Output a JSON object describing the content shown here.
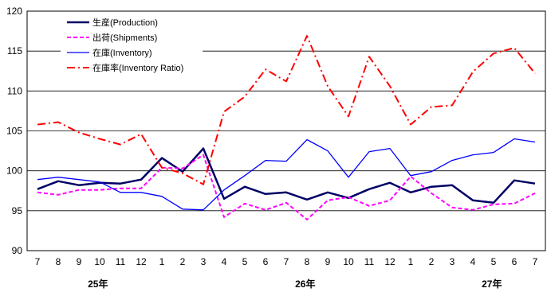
{
  "chart_data": {
    "type": "line",
    "title": "",
    "xlabel": "",
    "ylabel": "",
    "ylim": [
      90,
      120
    ],
    "yticks": [
      90,
      95,
      100,
      105,
      110,
      115,
      120
    ],
    "grid": "horizontal",
    "legend_position": "top-left",
    "categories": [
      "7",
      "8",
      "9",
      "10",
      "11",
      "12",
      "1",
      "2",
      "3",
      "4",
      "5",
      "6",
      "7",
      "8",
      "9",
      "10",
      "11",
      "12",
      "1",
      "2",
      "3",
      "4",
      "5",
      "6",
      "7"
    ],
    "year_labels": [
      {
        "label": "25年",
        "index": 3
      },
      {
        "label": "26年",
        "index": 13
      },
      {
        "label": "27年",
        "index": 22
      }
    ],
    "series": [
      {
        "name": "生産(Production)",
        "color": "#000066",
        "dash": "solid",
        "width": 2.5,
        "values": [
          97.7,
          98.7,
          98.2,
          98.5,
          98.4,
          98.9,
          101.6,
          99.9,
          102.8,
          96.5,
          98.0,
          97.1,
          97.3,
          96.4,
          97.3,
          96.6,
          97.7,
          98.5,
          97.3,
          98.0,
          98.2,
          96.3,
          96.0,
          98.8,
          98.4
        ]
      },
      {
        "name": "出荷(Shipments)",
        "color": "#ff00ff",
        "dash": "short-dash",
        "width": 2,
        "values": [
          97.3,
          97.0,
          97.6,
          97.6,
          97.8,
          97.8,
          100.4,
          100.3,
          102.0,
          94.2,
          95.9,
          95.1,
          96.0,
          93.9,
          96.3,
          96.7,
          95.6,
          96.3,
          99.3,
          97.2,
          95.4,
          95.1,
          95.8,
          95.9,
          97.2
        ]
      },
      {
        "name": "在庫(Inventory)",
        "color": "#0000ff",
        "dash": "solid",
        "width": 1.3,
        "values": [
          98.9,
          99.2,
          98.9,
          98.6,
          97.3,
          97.3,
          96.8,
          95.2,
          95.1,
          97.6,
          99.4,
          101.3,
          101.2,
          103.9,
          102.5,
          99.2,
          102.4,
          102.8,
          99.4,
          99.9,
          101.3,
          102.0,
          102.3,
          104.0,
          103.6
        ]
      },
      {
        "name": "在庫率(Inventory Ratio)",
        "color": "#ff0000",
        "dash": "dash-dot",
        "width": 2,
        "values": [
          105.8,
          106.1,
          104.8,
          104.0,
          103.3,
          104.6,
          100.4,
          99.7,
          98.3,
          107.4,
          109.3,
          112.7,
          111.2,
          116.9,
          110.6,
          106.8,
          114.3,
          110.6,
          105.8,
          108.0,
          108.2,
          112.4,
          114.7,
          115.4,
          112.2
        ]
      }
    ]
  }
}
